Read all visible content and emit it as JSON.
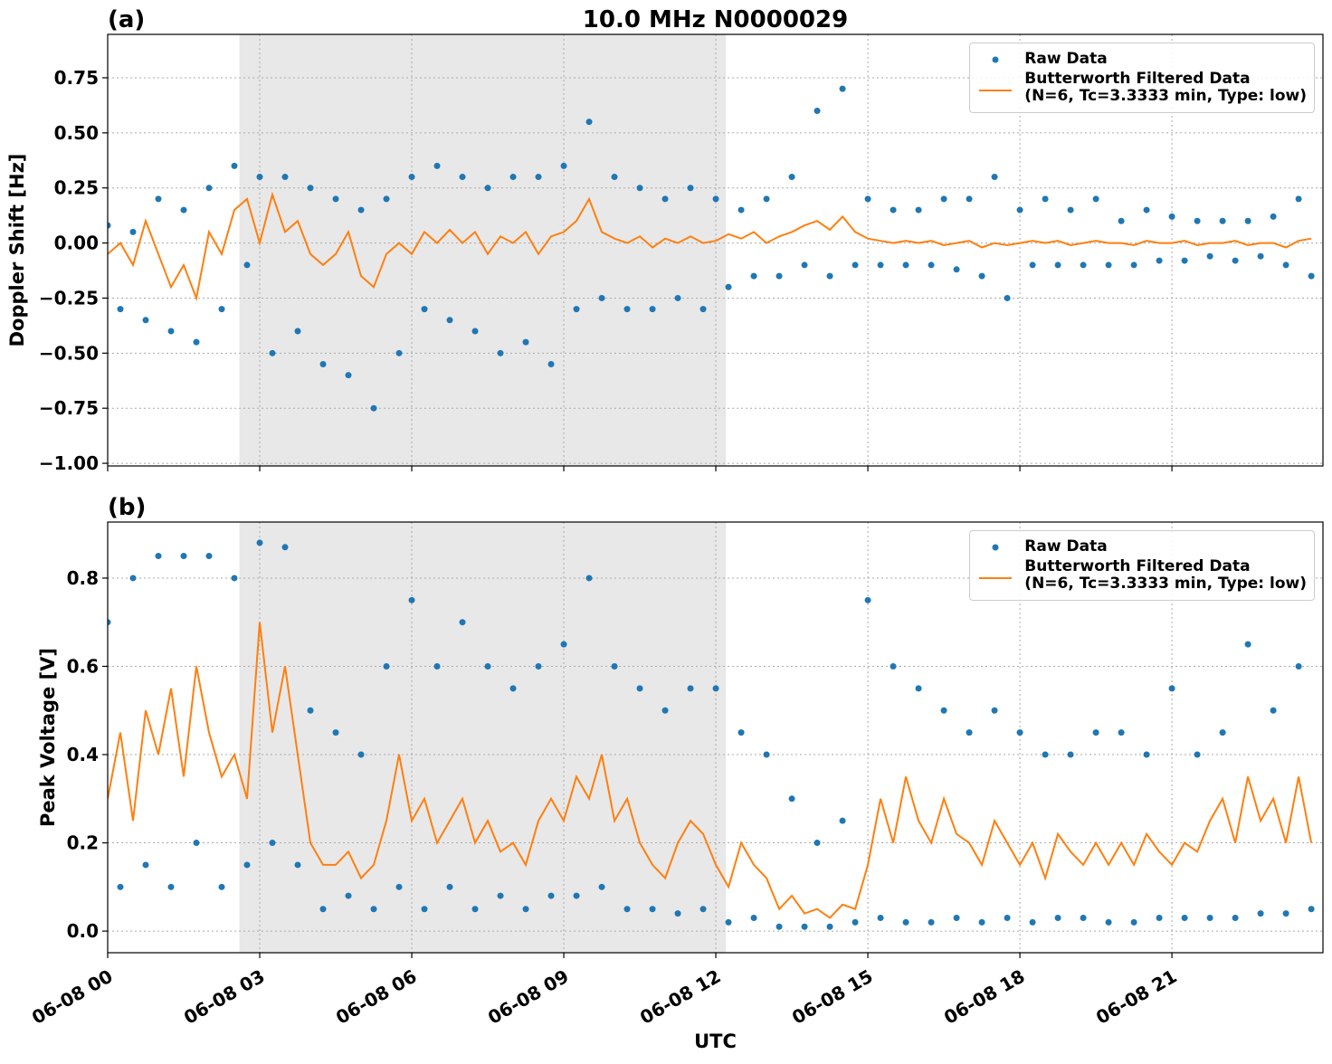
{
  "chart_data": [
    {
      "type": "line",
      "title": "10.0 MHz N0000029",
      "panel_label": "(a)",
      "ylabel": "Doppler Shift [Hz]",
      "xlim": [
        0,
        23.98
      ],
      "ylim": [
        -1.012,
        0.947
      ],
      "grid": true,
      "legend": "upper right",
      "shaded_span": [
        2.6,
        12.2
      ],
      "xticks": [
        0,
        3,
        6,
        9,
        12,
        15,
        18,
        21
      ],
      "yticks": [
        {
          "value": -1,
          "label": "−1.00"
        },
        {
          "value": -0.75,
          "label": "−0.75"
        },
        {
          "value": -0.5,
          "label": "−0.50"
        },
        {
          "value": -0.25,
          "label": "−0.25"
        },
        {
          "value": 0,
          "label": "0.00"
        },
        {
          "value": 0.25,
          "label": "0.25"
        },
        {
          "value": 0.5,
          "label": "0.50"
        },
        {
          "value": 0.75,
          "label": "0.75"
        }
      ],
      "x": [
        0,
        0.25,
        0.5,
        0.75,
        1,
        1.25,
        1.5,
        1.75,
        2,
        2.25,
        2.5,
        2.75,
        3,
        3.25,
        3.5,
        3.75,
        4,
        4.25,
        4.5,
        4.75,
        5,
        5.25,
        5.5,
        5.75,
        6,
        6.25,
        6.5,
        6.75,
        7,
        7.25,
        7.5,
        7.75,
        8,
        8.25,
        8.5,
        8.75,
        9,
        9.25,
        9.5,
        9.75,
        10,
        10.25,
        10.5,
        10.75,
        11,
        11.25,
        11.5,
        11.75,
        12,
        12.25,
        12.5,
        12.75,
        13,
        13.25,
        13.5,
        13.75,
        14,
        14.25,
        14.5,
        14.75,
        15,
        15.25,
        15.5,
        15.75,
        16,
        16.25,
        16.5,
        16.75,
        17,
        17.25,
        17.5,
        17.75,
        18,
        18.25,
        18.5,
        18.75,
        19,
        19.25,
        19.5,
        19.75,
        20,
        20.25,
        20.5,
        20.75,
        21,
        21.25,
        21.5,
        21.75,
        22,
        22.25,
        22.5,
        22.75,
        23,
        23.25,
        23.5,
        23.75
      ],
      "series": [
        {
          "name": "Raw Data",
          "kind": "point",
          "color": "#1f77b4",
          "values": [
            0.08,
            -0.3,
            0.05,
            -0.35,
            0.2,
            -0.4,
            0.15,
            -0.45,
            0.25,
            -0.3,
            0.35,
            -0.1,
            0.3,
            -0.5,
            0.3,
            -0.4,
            0.25,
            -0.55,
            0.2,
            -0.6,
            0.15,
            -0.75,
            0.2,
            -0.5,
            0.3,
            -0.3,
            0.35,
            -0.35,
            0.3,
            -0.4,
            0.25,
            -0.5,
            0.3,
            -0.45,
            0.3,
            -0.55,
            0.35,
            -0.3,
            0.55,
            -0.25,
            0.3,
            -0.3,
            0.25,
            -0.3,
            0.2,
            -0.25,
            0.25,
            -0.3,
            0.2,
            -0.2,
            0.15,
            -0.15,
            0.2,
            -0.15,
            0.3,
            -0.1,
            0.6,
            -0.15,
            0.7,
            -0.1,
            0.2,
            -0.1,
            0.15,
            -0.1,
            0.15,
            -0.1,
            0.2,
            -0.12,
            0.2,
            -0.15,
            0.3,
            -0.25,
            0.15,
            -0.1,
            0.2,
            -0.1,
            0.15,
            -0.1,
            0.2,
            -0.1,
            0.1,
            -0.1,
            0.15,
            -0.08,
            0.12,
            -0.08,
            0.1,
            -0.06,
            0.1,
            -0.08,
            0.1,
            -0.06,
            0.12,
            -0.1,
            0.2,
            -0.15
          ]
        },
        {
          "name": "Butterworth Filtered Data\n(N=6, Tc=3.3333 min, Type: low)",
          "kind": "line",
          "color": "#ff7f0e",
          "values": [
            -0.05,
            0.0,
            -0.1,
            0.1,
            -0.05,
            -0.2,
            -0.1,
            -0.25,
            0.05,
            -0.05,
            0.15,
            0.2,
            0.0,
            0.22,
            0.05,
            0.1,
            -0.05,
            -0.1,
            -0.05,
            0.05,
            -0.15,
            -0.2,
            -0.05,
            0.0,
            -0.05,
            0.05,
            0.0,
            0.06,
            0.0,
            0.05,
            -0.05,
            0.03,
            0.0,
            0.05,
            -0.05,
            0.03,
            0.05,
            0.1,
            0.2,
            0.05,
            0.02,
            0.0,
            0.03,
            -0.02,
            0.02,
            0.0,
            0.03,
            0.0,
            0.01,
            0.04,
            0.02,
            0.05,
            0.0,
            0.03,
            0.05,
            0.08,
            0.1,
            0.06,
            0.12,
            0.05,
            0.02,
            0.01,
            0.0,
            0.01,
            0.0,
            0.01,
            -0.01,
            0.0,
            0.01,
            -0.02,
            0.0,
            -0.01,
            0.0,
            0.01,
            0.0,
            0.01,
            -0.01,
            0.0,
            0.01,
            0.0,
            0.0,
            -0.01,
            0.01,
            0.0,
            0.0,
            0.01,
            -0.01,
            0.0,
            0.0,
            0.01,
            -0.01,
            0.0,
            0.0,
            -0.02,
            0.01,
            0.02
          ]
        }
      ]
    },
    {
      "type": "line",
      "panel_label": "(b)",
      "ylabel": "Peak Voltage [V]",
      "xlabel": "UTC",
      "xlim": [
        0,
        23.98
      ],
      "ylim": [
        -0.049,
        0.927
      ],
      "grid": true,
      "legend": "upper right",
      "shaded_span": [
        2.6,
        12.2
      ],
      "xticks": [
        {
          "value": 0,
          "label": "06-08 00"
        },
        {
          "value": 3,
          "label": "06-08 03"
        },
        {
          "value": 6,
          "label": "06-08 06"
        },
        {
          "value": 9,
          "label": "06-08 09"
        },
        {
          "value": 12,
          "label": "06-08 12"
        },
        {
          "value": 15,
          "label": "06-08 15"
        },
        {
          "value": 18,
          "label": "06-08 18"
        },
        {
          "value": 21,
          "label": "06-08 21"
        }
      ],
      "yticks": [
        {
          "value": 0,
          "label": "0.0"
        },
        {
          "value": 0.2,
          "label": "0.2"
        },
        {
          "value": 0.4,
          "label": "0.4"
        },
        {
          "value": 0.6,
          "label": "0.6"
        },
        {
          "value": 0.8,
          "label": "0.8"
        }
      ],
      "x": [
        0,
        0.25,
        0.5,
        0.75,
        1,
        1.25,
        1.5,
        1.75,
        2,
        2.25,
        2.5,
        2.75,
        3,
        3.25,
        3.5,
        3.75,
        4,
        4.25,
        4.5,
        4.75,
        5,
        5.25,
        5.5,
        5.75,
        6,
        6.25,
        6.5,
        6.75,
        7,
        7.25,
        7.5,
        7.75,
        8,
        8.25,
        8.5,
        8.75,
        9,
        9.25,
        9.5,
        9.75,
        10,
        10.25,
        10.5,
        10.75,
        11,
        11.25,
        11.5,
        11.75,
        12,
        12.25,
        12.5,
        12.75,
        13,
        13.25,
        13.5,
        13.75,
        14,
        14.25,
        14.5,
        14.75,
        15,
        15.25,
        15.5,
        15.75,
        16,
        16.25,
        16.5,
        16.75,
        17,
        17.25,
        17.5,
        17.75,
        18,
        18.25,
        18.5,
        18.75,
        19,
        19.25,
        19.5,
        19.75,
        20,
        20.25,
        20.5,
        20.75,
        21,
        21.25,
        21.5,
        21.75,
        22,
        22.25,
        22.5,
        22.75,
        23,
        23.25,
        23.5,
        23.75
      ],
      "series": [
        {
          "name": "Raw Data",
          "kind": "point",
          "color": "#1f77b4",
          "values": [
            0.7,
            0.1,
            0.8,
            0.15,
            0.85,
            0.1,
            0.85,
            0.2,
            0.85,
            0.1,
            0.8,
            0.15,
            0.88,
            0.2,
            0.87,
            0.15,
            0.5,
            0.05,
            0.45,
            0.08,
            0.4,
            0.05,
            0.6,
            0.1,
            0.75,
            0.05,
            0.6,
            0.1,
            0.7,
            0.05,
            0.6,
            0.08,
            0.55,
            0.05,
            0.6,
            0.08,
            0.65,
            0.08,
            0.8,
            0.1,
            0.6,
            0.05,
            0.55,
            0.05,
            0.5,
            0.04,
            0.55,
            0.05,
            0.55,
            0.02,
            0.45,
            0.03,
            0.4,
            0.01,
            0.3,
            0.01,
            0.2,
            0.01,
            0.25,
            0.02,
            0.75,
            0.03,
            0.6,
            0.02,
            0.55,
            0.02,
            0.5,
            0.03,
            0.45,
            0.02,
            0.5,
            0.03,
            0.45,
            0.02,
            0.4,
            0.03,
            0.4,
            0.03,
            0.45,
            0.02,
            0.45,
            0.02,
            0.4,
            0.03,
            0.55,
            0.03,
            0.4,
            0.03,
            0.45,
            0.03,
            0.65,
            0.04,
            0.5,
            0.04,
            0.6,
            0.05
          ]
        },
        {
          "name": "Butterworth Filtered Data\n(N=6, Tc=3.3333 min, Type: low)",
          "kind": "line",
          "color": "#ff7f0e",
          "values": [
            0.3,
            0.45,
            0.25,
            0.5,
            0.4,
            0.55,
            0.35,
            0.6,
            0.45,
            0.35,
            0.4,
            0.3,
            0.7,
            0.45,
            0.6,
            0.4,
            0.2,
            0.15,
            0.15,
            0.18,
            0.12,
            0.15,
            0.25,
            0.4,
            0.25,
            0.3,
            0.2,
            0.25,
            0.3,
            0.2,
            0.25,
            0.18,
            0.2,
            0.15,
            0.25,
            0.3,
            0.25,
            0.35,
            0.3,
            0.4,
            0.25,
            0.3,
            0.2,
            0.15,
            0.12,
            0.2,
            0.25,
            0.22,
            0.15,
            0.1,
            0.2,
            0.15,
            0.12,
            0.05,
            0.08,
            0.04,
            0.05,
            0.03,
            0.06,
            0.05,
            0.15,
            0.3,
            0.2,
            0.35,
            0.25,
            0.2,
            0.3,
            0.22,
            0.2,
            0.15,
            0.25,
            0.2,
            0.15,
            0.2,
            0.12,
            0.22,
            0.18,
            0.15,
            0.2,
            0.15,
            0.2,
            0.15,
            0.22,
            0.18,
            0.15,
            0.2,
            0.18,
            0.25,
            0.3,
            0.2,
            0.35,
            0.25,
            0.3,
            0.2,
            0.35,
            0.2
          ]
        }
      ]
    }
  ]
}
